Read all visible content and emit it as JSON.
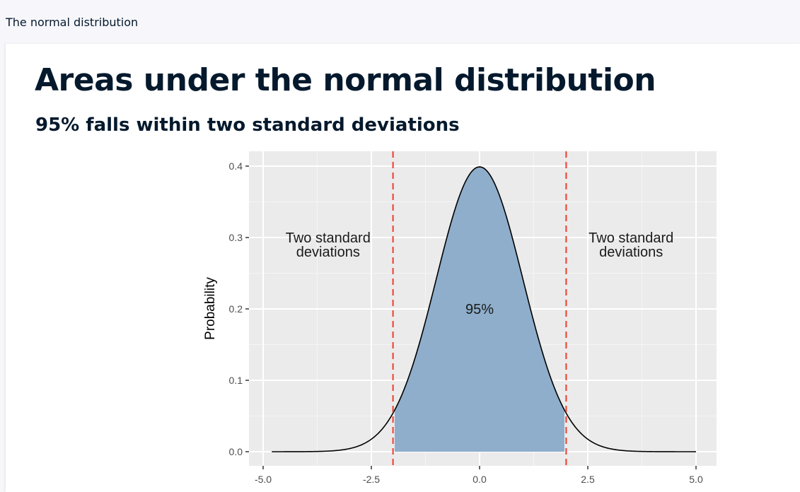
{
  "header": {
    "title": "The normal distribution"
  },
  "slide": {
    "title": "Areas under the normal distribution",
    "subtitle": "95% falls within two standard deviations"
  },
  "chart_data": {
    "type": "area",
    "xlim": [
      -5.0,
      5.0
    ],
    "ylim": [
      0.0,
      0.4
    ],
    "x_ticks": [
      -5.0,
      -2.5,
      0.0,
      2.5,
      5.0
    ],
    "x_tick_labels": [
      "-5.0",
      "-2.5",
      "0.0",
      "2.5",
      "5.0"
    ],
    "y_ticks": [
      0.0,
      0.1,
      0.2,
      0.3,
      0.4
    ],
    "y_tick_labels": [
      "0.0",
      "0.1",
      "0.2",
      "0.3",
      "0.4"
    ],
    "xlabel": "",
    "ylabel": "Probability",
    "grid": true,
    "curve": {
      "distribution": "normal",
      "mean": 0,
      "sd": 1,
      "x_range": [
        -4.8,
        5.0
      ]
    },
    "shaded_region": {
      "x_from": -1.96,
      "x_to": 1.96,
      "color": "#8eaecb"
    },
    "reference_lines": [
      {
        "x": -2,
        "color": "#f03b2b",
        "style": "dashed"
      },
      {
        "x": 2,
        "color": "#f03b2b",
        "style": "dashed"
      }
    ],
    "annotations": [
      {
        "x": -3.5,
        "y": 0.29,
        "lines": [
          "Two standard",
          "deviations"
        ]
      },
      {
        "x": 3.5,
        "y": 0.29,
        "lines": [
          "Two standard",
          "deviations"
        ]
      },
      {
        "x": 0,
        "y": 0.2,
        "lines": [
          "95%"
        ]
      }
    ]
  }
}
